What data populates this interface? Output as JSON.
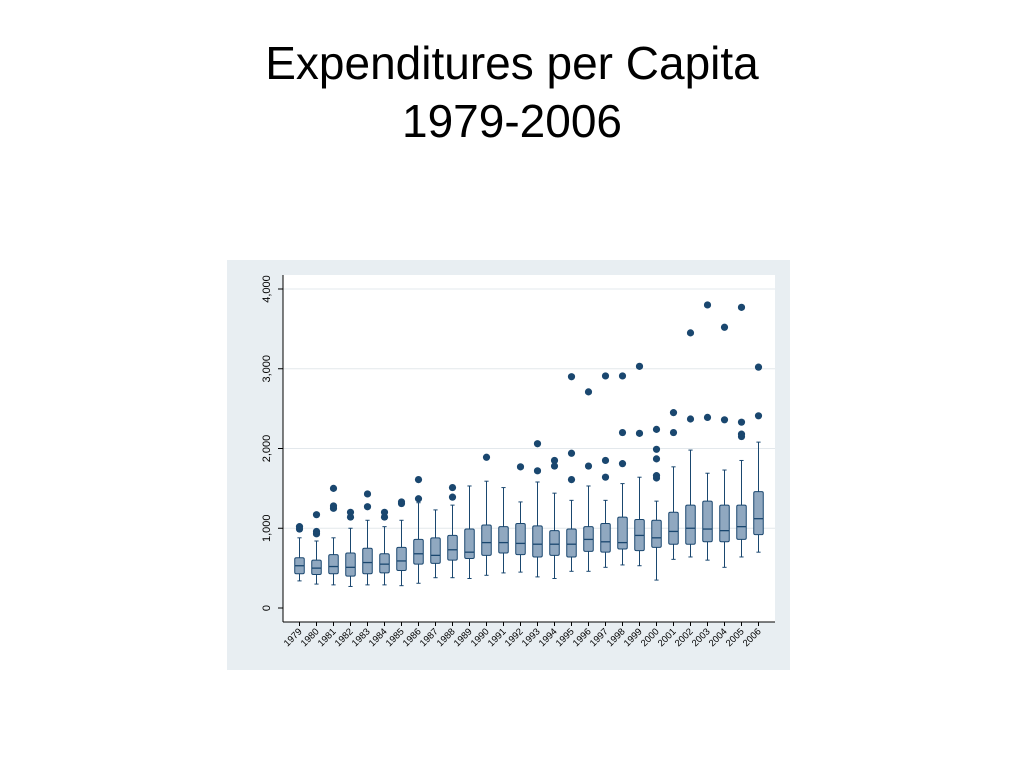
{
  "slide": {
    "title_line1": "Expenditures per Capita",
    "title_line2": "1979-2006"
  },
  "chart_data": {
    "type": "boxplot",
    "title": "",
    "xlabel": "",
    "ylabel": "",
    "ylim": [
      0,
      4000
    ],
    "y_ticks": [
      0,
      1000,
      2000,
      3000,
      4000
    ],
    "y_tick_labels": [
      "0",
      "1,000",
      "2,000",
      "3,000",
      "4,000"
    ],
    "grid": true,
    "legend": "none",
    "colors": {
      "box_fill": "#90a8c0",
      "box_stroke": "#1a476f",
      "outlier": "#1a476f",
      "plot_bg": "#ffffff",
      "frame_bg": "#e8eef2",
      "grid": "#e3e8ec"
    },
    "categories": [
      "1979",
      "1980",
      "1981",
      "1982",
      "1983",
      "1984",
      "1985",
      "1986",
      "1987",
      "1988",
      "1989",
      "1990",
      "1991",
      "1992",
      "1993",
      "1994",
      "1995",
      "1996",
      "1997",
      "1998",
      "1999",
      "2000",
      "2001",
      "2002",
      "2003",
      "2004",
      "2005",
      "2006"
    ],
    "boxes": [
      {
        "min": 340,
        "q1": 430,
        "median": 530,
        "q3": 630,
        "max": 880,
        "outliers": [
          990,
          1020
        ]
      },
      {
        "min": 300,
        "q1": 420,
        "median": 500,
        "q3": 600,
        "max": 840,
        "outliers": [
          930,
          960,
          1170
        ]
      },
      {
        "min": 290,
        "q1": 430,
        "median": 520,
        "q3": 670,
        "max": 880,
        "outliers": [
          1250,
          1280,
          1500
        ]
      },
      {
        "min": 270,
        "q1": 400,
        "median": 510,
        "q3": 690,
        "max": 1000,
        "outliers": [
          1140,
          1200
        ]
      },
      {
        "min": 290,
        "q1": 430,
        "median": 570,
        "q3": 750,
        "max": 1100,
        "outliers": [
          1270,
          1430
        ]
      },
      {
        "min": 290,
        "q1": 440,
        "median": 550,
        "q3": 680,
        "max": 1020,
        "outliers": [
          1140,
          1200
        ]
      },
      {
        "min": 280,
        "q1": 470,
        "median": 590,
        "q3": 760,
        "max": 1100,
        "outliers": [
          1310,
          1330
        ]
      },
      {
        "min": 310,
        "q1": 550,
        "median": 680,
        "q3": 860,
        "max": 1320,
        "outliers": [
          1370,
          1610
        ]
      },
      {
        "min": 380,
        "q1": 560,
        "median": 660,
        "q3": 880,
        "max": 1230,
        "outliers": []
      },
      {
        "min": 380,
        "q1": 600,
        "median": 730,
        "q3": 910,
        "max": 1290,
        "outliers": [
          1390,
          1510
        ]
      },
      {
        "min": 370,
        "q1": 620,
        "median": 700,
        "q3": 990,
        "max": 1530,
        "outliers": []
      },
      {
        "min": 410,
        "q1": 660,
        "median": 820,
        "q3": 1040,
        "max": 1590,
        "outliers": [
          1890
        ]
      },
      {
        "min": 440,
        "q1": 690,
        "median": 820,
        "q3": 1020,
        "max": 1510,
        "outliers": []
      },
      {
        "min": 450,
        "q1": 670,
        "median": 810,
        "q3": 1060,
        "max": 1330,
        "outliers": [
          1770
        ]
      },
      {
        "min": 390,
        "q1": 640,
        "median": 800,
        "q3": 1030,
        "max": 1580,
        "outliers": [
          1720,
          2060
        ]
      },
      {
        "min": 370,
        "q1": 660,
        "median": 800,
        "q3": 970,
        "max": 1440,
        "outliers": [
          1780,
          1850
        ]
      },
      {
        "min": 460,
        "q1": 640,
        "median": 800,
        "q3": 990,
        "max": 1350,
        "outliers": [
          1610,
          1940,
          2900
        ]
      },
      {
        "min": 460,
        "q1": 710,
        "median": 860,
        "q3": 1020,
        "max": 1530,
        "outliers": [
          1780,
          2710
        ]
      },
      {
        "min": 510,
        "q1": 700,
        "median": 830,
        "q3": 1060,
        "max": 1350,
        "outliers": [
          1640,
          1850,
          2910
        ]
      },
      {
        "min": 540,
        "q1": 740,
        "median": 820,
        "q3": 1140,
        "max": 1560,
        "outliers": [
          1810,
          2200,
          2910
        ]
      },
      {
        "min": 530,
        "q1": 720,
        "median": 910,
        "q3": 1110,
        "max": 1640,
        "outliers": [
          2190,
          3030
        ]
      },
      {
        "min": 350,
        "q1": 760,
        "median": 880,
        "q3": 1100,
        "max": 1340,
        "outliers": [
          1630,
          1660,
          1870,
          1990,
          2240
        ]
      },
      {
        "min": 610,
        "q1": 800,
        "median": 960,
        "q3": 1200,
        "max": 1770,
        "outliers": [
          2200,
          2450
        ]
      },
      {
        "min": 640,
        "q1": 800,
        "median": 1000,
        "q3": 1290,
        "max": 1980,
        "outliers": [
          2370,
          3450
        ]
      },
      {
        "min": 600,
        "q1": 830,
        "median": 990,
        "q3": 1340,
        "max": 1690,
        "outliers": [
          2390,
          3800
        ]
      },
      {
        "min": 510,
        "q1": 830,
        "median": 970,
        "q3": 1290,
        "max": 1730,
        "outliers": [
          2360,
          3520
        ]
      },
      {
        "min": 640,
        "q1": 860,
        "median": 1020,
        "q3": 1290,
        "max": 1850,
        "outliers": [
          2150,
          2180,
          2330,
          3770
        ]
      },
      {
        "min": 700,
        "q1": 920,
        "median": 1120,
        "q3": 1460,
        "max": 2080,
        "outliers": [
          2410,
          3020
        ]
      }
    ]
  }
}
